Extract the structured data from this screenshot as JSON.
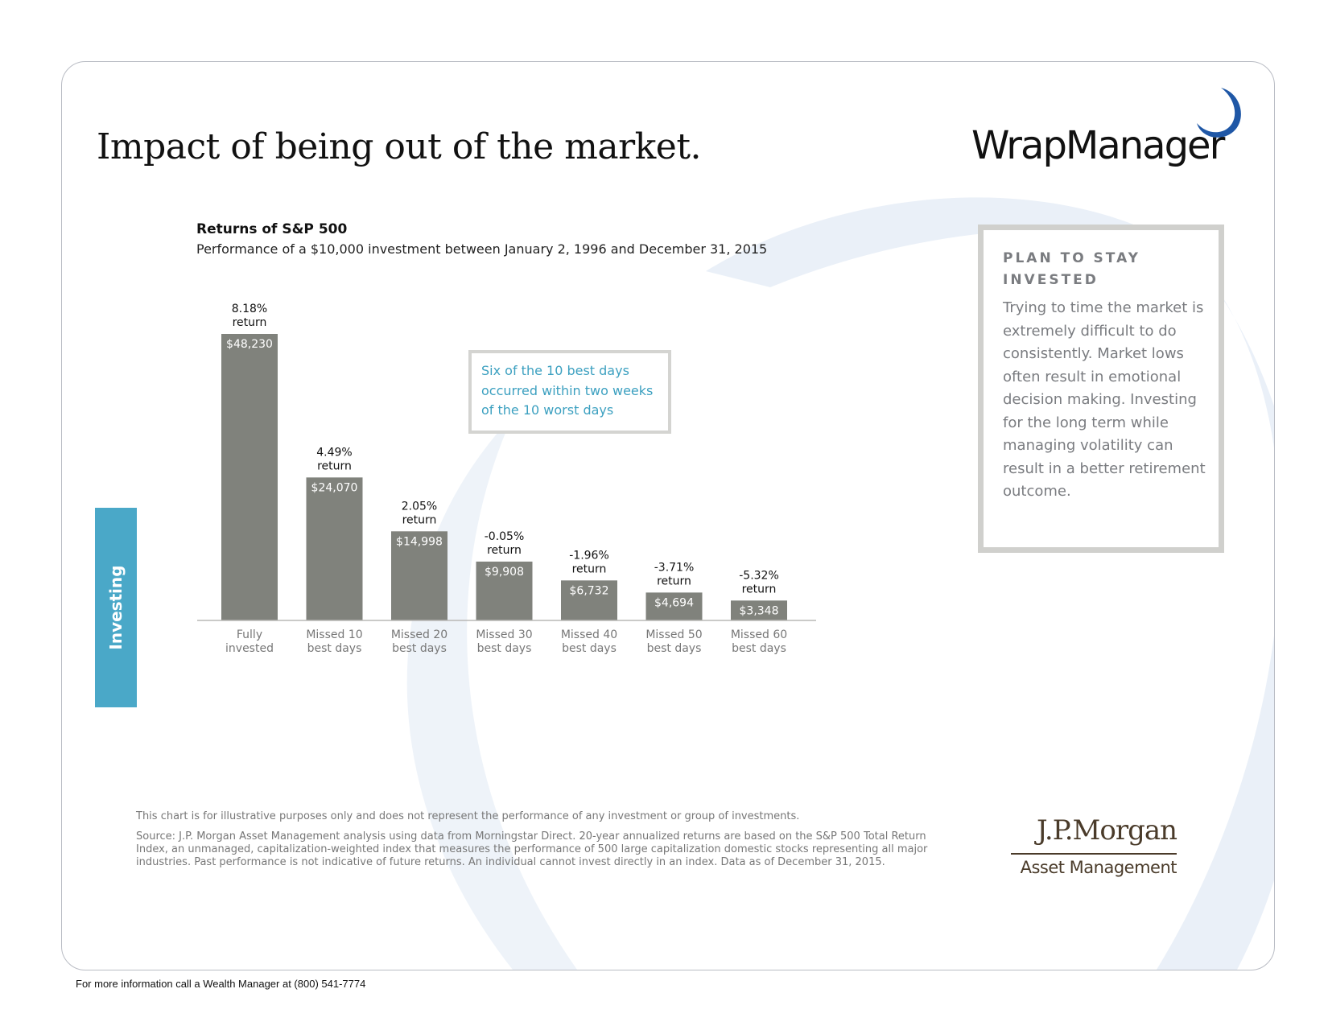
{
  "colors": {
    "bar": "#80827c",
    "accent_blue": "#4aa8c8",
    "callout_text": "#3ca0c0",
    "swoosh": "#eaf0f8",
    "box_border": "#d0d0cd",
    "jpm_brown": "#4a3b2a"
  },
  "page": {
    "title": "Impact of being out of the market.",
    "side_tab": "Investing",
    "footer": "For more information call a Wealth Manager at (800) 541-7774"
  },
  "logo": {
    "wrapmanager": "WrapManager",
    "jpmorgan_name": "J.P.Morgan",
    "jpmorgan_division": "Asset Management"
  },
  "callout": {
    "text": "Six of the 10 best days occurred within two weeks of the 10 worst days"
  },
  "side_box": {
    "heading": "PLAN TO STAY INVESTED",
    "body": "Trying to time the market is extremely difficult to do consistently. Market lows often result in emotional decision making. Investing for the long term while managing volatility can result in a better retirement outcome."
  },
  "notes": {
    "disclaimer": "This chart is for illustrative purposes only and does not represent the performance of any investment or group of investments.",
    "source": "Source: J.P. Morgan Asset Management analysis using data from Morningstar Direct. 20-year annualized returns are based on the S&P 500 Total Return Index, an unmanaged, capitalization-weighted index that measures the performance of 500 large capitalization domestic stocks representing all major industries. Past performance is not indicative of future returns. An individual cannot invest directly in an index. Data as of December 31, 2015."
  },
  "chart_data": {
    "type": "bar",
    "title": "Returns of S&P 500",
    "subtitle": "Performance of a $10,000 investment between January 2, 1996 and December 31, 2015",
    "categories": [
      [
        "Fully",
        "invested"
      ],
      [
        "Missed 10",
        "best days"
      ],
      [
        "Missed 20",
        "best days"
      ],
      [
        "Missed 30",
        "best days"
      ],
      [
        "Missed 40",
        "best days"
      ],
      [
        "Missed 50",
        "best days"
      ],
      [
        "Missed 60",
        "best days"
      ]
    ],
    "values": [
      48230,
      24070,
      14998,
      9908,
      6732,
      4694,
      3348
    ],
    "value_labels": [
      "$48,230",
      "$24,070",
      "$14,998",
      "$9,908",
      "$6,732",
      "$4,694",
      "$3,348"
    ],
    "returns": [
      "8.18%",
      "4.49%",
      "2.05%",
      "-0.05%",
      "-1.96%",
      "-3.71%",
      "-5.32%"
    ],
    "return_word": "return",
    "ylim": [
      0,
      48230
    ],
    "xlabel": "",
    "ylabel": ""
  }
}
